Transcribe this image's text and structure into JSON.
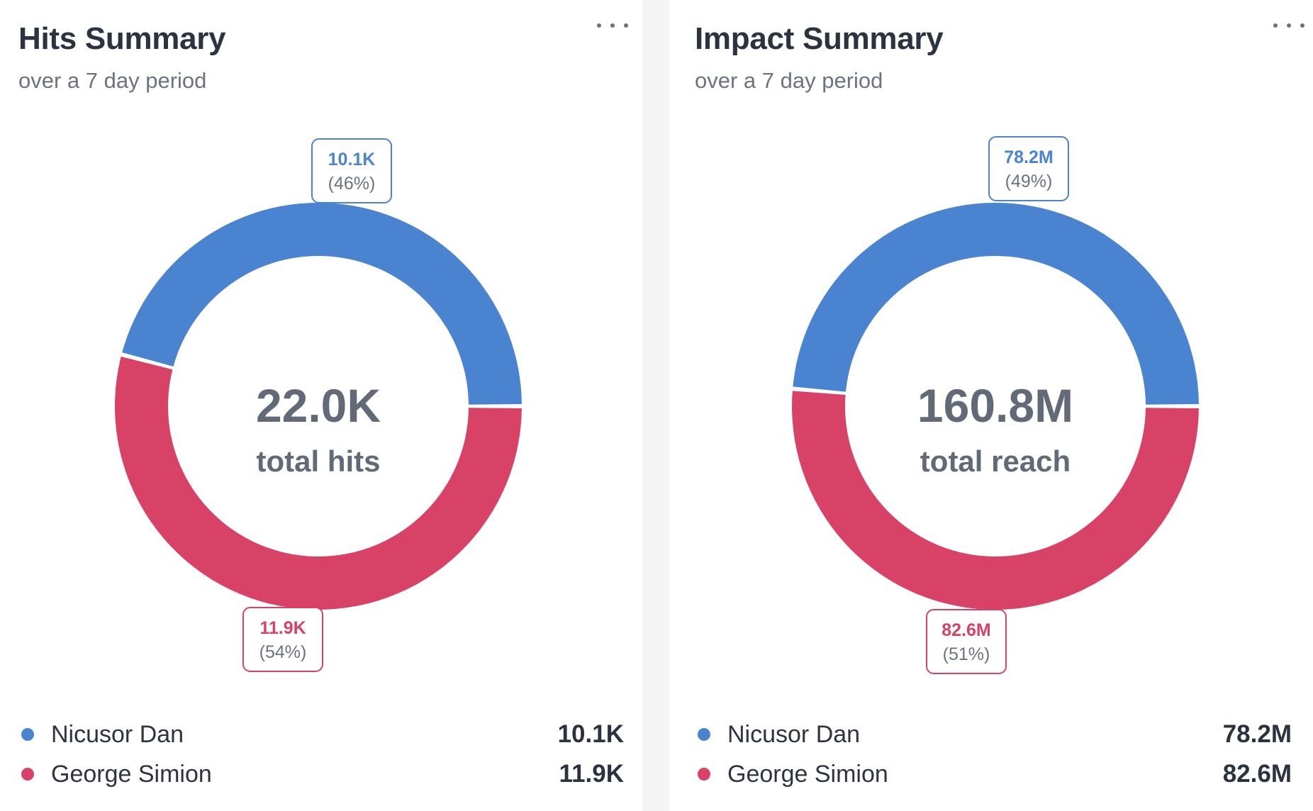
{
  "colors": {
    "series_a": "#4a84d0",
    "series_b": "#d94267",
    "center_text": "#626a78",
    "pct_text": "#6b7280"
  },
  "cards": [
    {
      "title": "Hits Summary",
      "subtitle": "over a 7 day period",
      "center_value": "22.0K",
      "center_label": "total hits",
      "legend": [
        {
          "name": "Nicusor Dan",
          "value": "10.1K"
        },
        {
          "name": "George Simion",
          "value": "11.9K"
        }
      ]
    },
    {
      "title": "Impact Summary",
      "subtitle": "over a 7 day period",
      "center_value": "160.8M",
      "center_label": "total reach",
      "legend": [
        {
          "name": "Nicusor Dan",
          "value": "78.2M"
        },
        {
          "name": "George Simion",
          "value": "82.6M"
        }
      ]
    }
  ],
  "chart_data": [
    {
      "type": "pie",
      "title": "Hits Summary",
      "subtitle": "over a 7 day period",
      "series": [
        {
          "name": "Nicusor Dan",
          "value": 10100,
          "label": "10.1K",
          "percent_label": "(46%)",
          "color": "#4a84d0"
        },
        {
          "name": "George Simion",
          "value": 11900,
          "label": "11.9K",
          "percent_label": "(54%)",
          "color": "#d94267"
        }
      ],
      "total_label": "22.0K",
      "center_text": "total hits",
      "donut": true
    },
    {
      "type": "pie",
      "title": "Impact Summary",
      "subtitle": "over a 7 day period",
      "series": [
        {
          "name": "Nicusor Dan",
          "value": 78200000,
          "label": "78.2M",
          "percent_label": "(49%)",
          "color": "#4a84d0"
        },
        {
          "name": "George Simion",
          "value": 82600000,
          "label": "82.6M",
          "percent_label": "(51%)",
          "color": "#d94267"
        }
      ],
      "total_label": "160.8M",
      "center_text": "total reach",
      "donut": true
    }
  ]
}
